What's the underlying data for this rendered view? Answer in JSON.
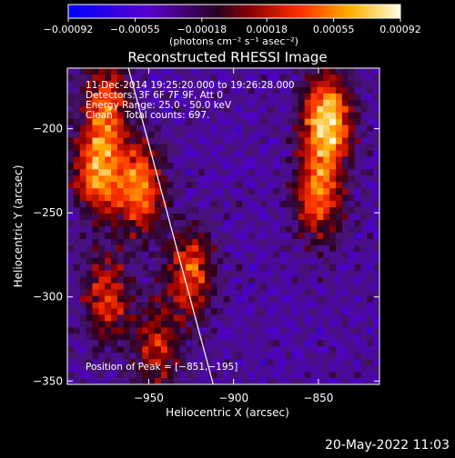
{
  "chart_data": {
    "type": "heatmap",
    "title": "Reconstructed RHESSI Image",
    "xlabel": "Heliocentric X (arcsec)",
    "ylabel": "Heliocentric Y (arcsec)",
    "xlim": [
      -998,
      -814
    ],
    "ylim": [
      -352,
      -164
    ],
    "x_ticks": [
      -950,
      -900,
      -850
    ],
    "x_tick_labels": [
      "−950",
      "−900",
      "−850"
    ],
    "y_ticks": [
      -200,
      -250,
      -300,
      -350
    ],
    "y_tick_labels": [
      "−200",
      "−250",
      "−300",
      "−350"
    ],
    "colorbar": {
      "min": -0.00092,
      "max": 0.00092,
      "ticks": [
        -0.00092,
        -0.00055,
        -0.00018,
        0.00018,
        0.00055,
        0.00092
      ],
      "tick_labels": [
        "−0.00092",
        "−0.00055",
        "−0.00018",
        "0.00018",
        "0.00055",
        "0.00092"
      ],
      "unit_label": "(photons cm⁻² s⁻¹ asec⁻²)",
      "colormap": "blue-purple-red-yellow-white"
    },
    "annotations": {
      "time_range": "11-Dec-2014 19:25:20.000 to 19:26:28.000",
      "detectors": "Detectors: 3F 6F 7F 9F, Att 0",
      "energy_range": "Energy Range: 25.0 - 50.0 keV",
      "clean_counts": "Clean    Total counts: 697.",
      "peak_position": "Position of Peak = [−851,−195]"
    },
    "peak": [
      -851,
      -195
    ],
    "limb_line": [
      [
        -962,
        -164
      ],
      [
        -912,
        -352
      ]
    ],
    "bright_sources": [
      {
        "x": -845,
        "y": -195,
        "strength": 1.0
      },
      {
        "x": -850,
        "y": -240,
        "strength": 0.7
      },
      {
        "x": -980,
        "y": -225,
        "strength": 0.8
      },
      {
        "x": -955,
        "y": -235,
        "strength": 0.75
      },
      {
        "x": -975,
        "y": -300,
        "strength": 0.55
      },
      {
        "x": -945,
        "y": -330,
        "strength": 0.5
      },
      {
        "x": -925,
        "y": -285,
        "strength": 0.65
      },
      {
        "x": -975,
        "y": -185,
        "strength": 0.6
      }
    ]
  },
  "footer": {
    "date": "20-May-2022 11:03"
  }
}
